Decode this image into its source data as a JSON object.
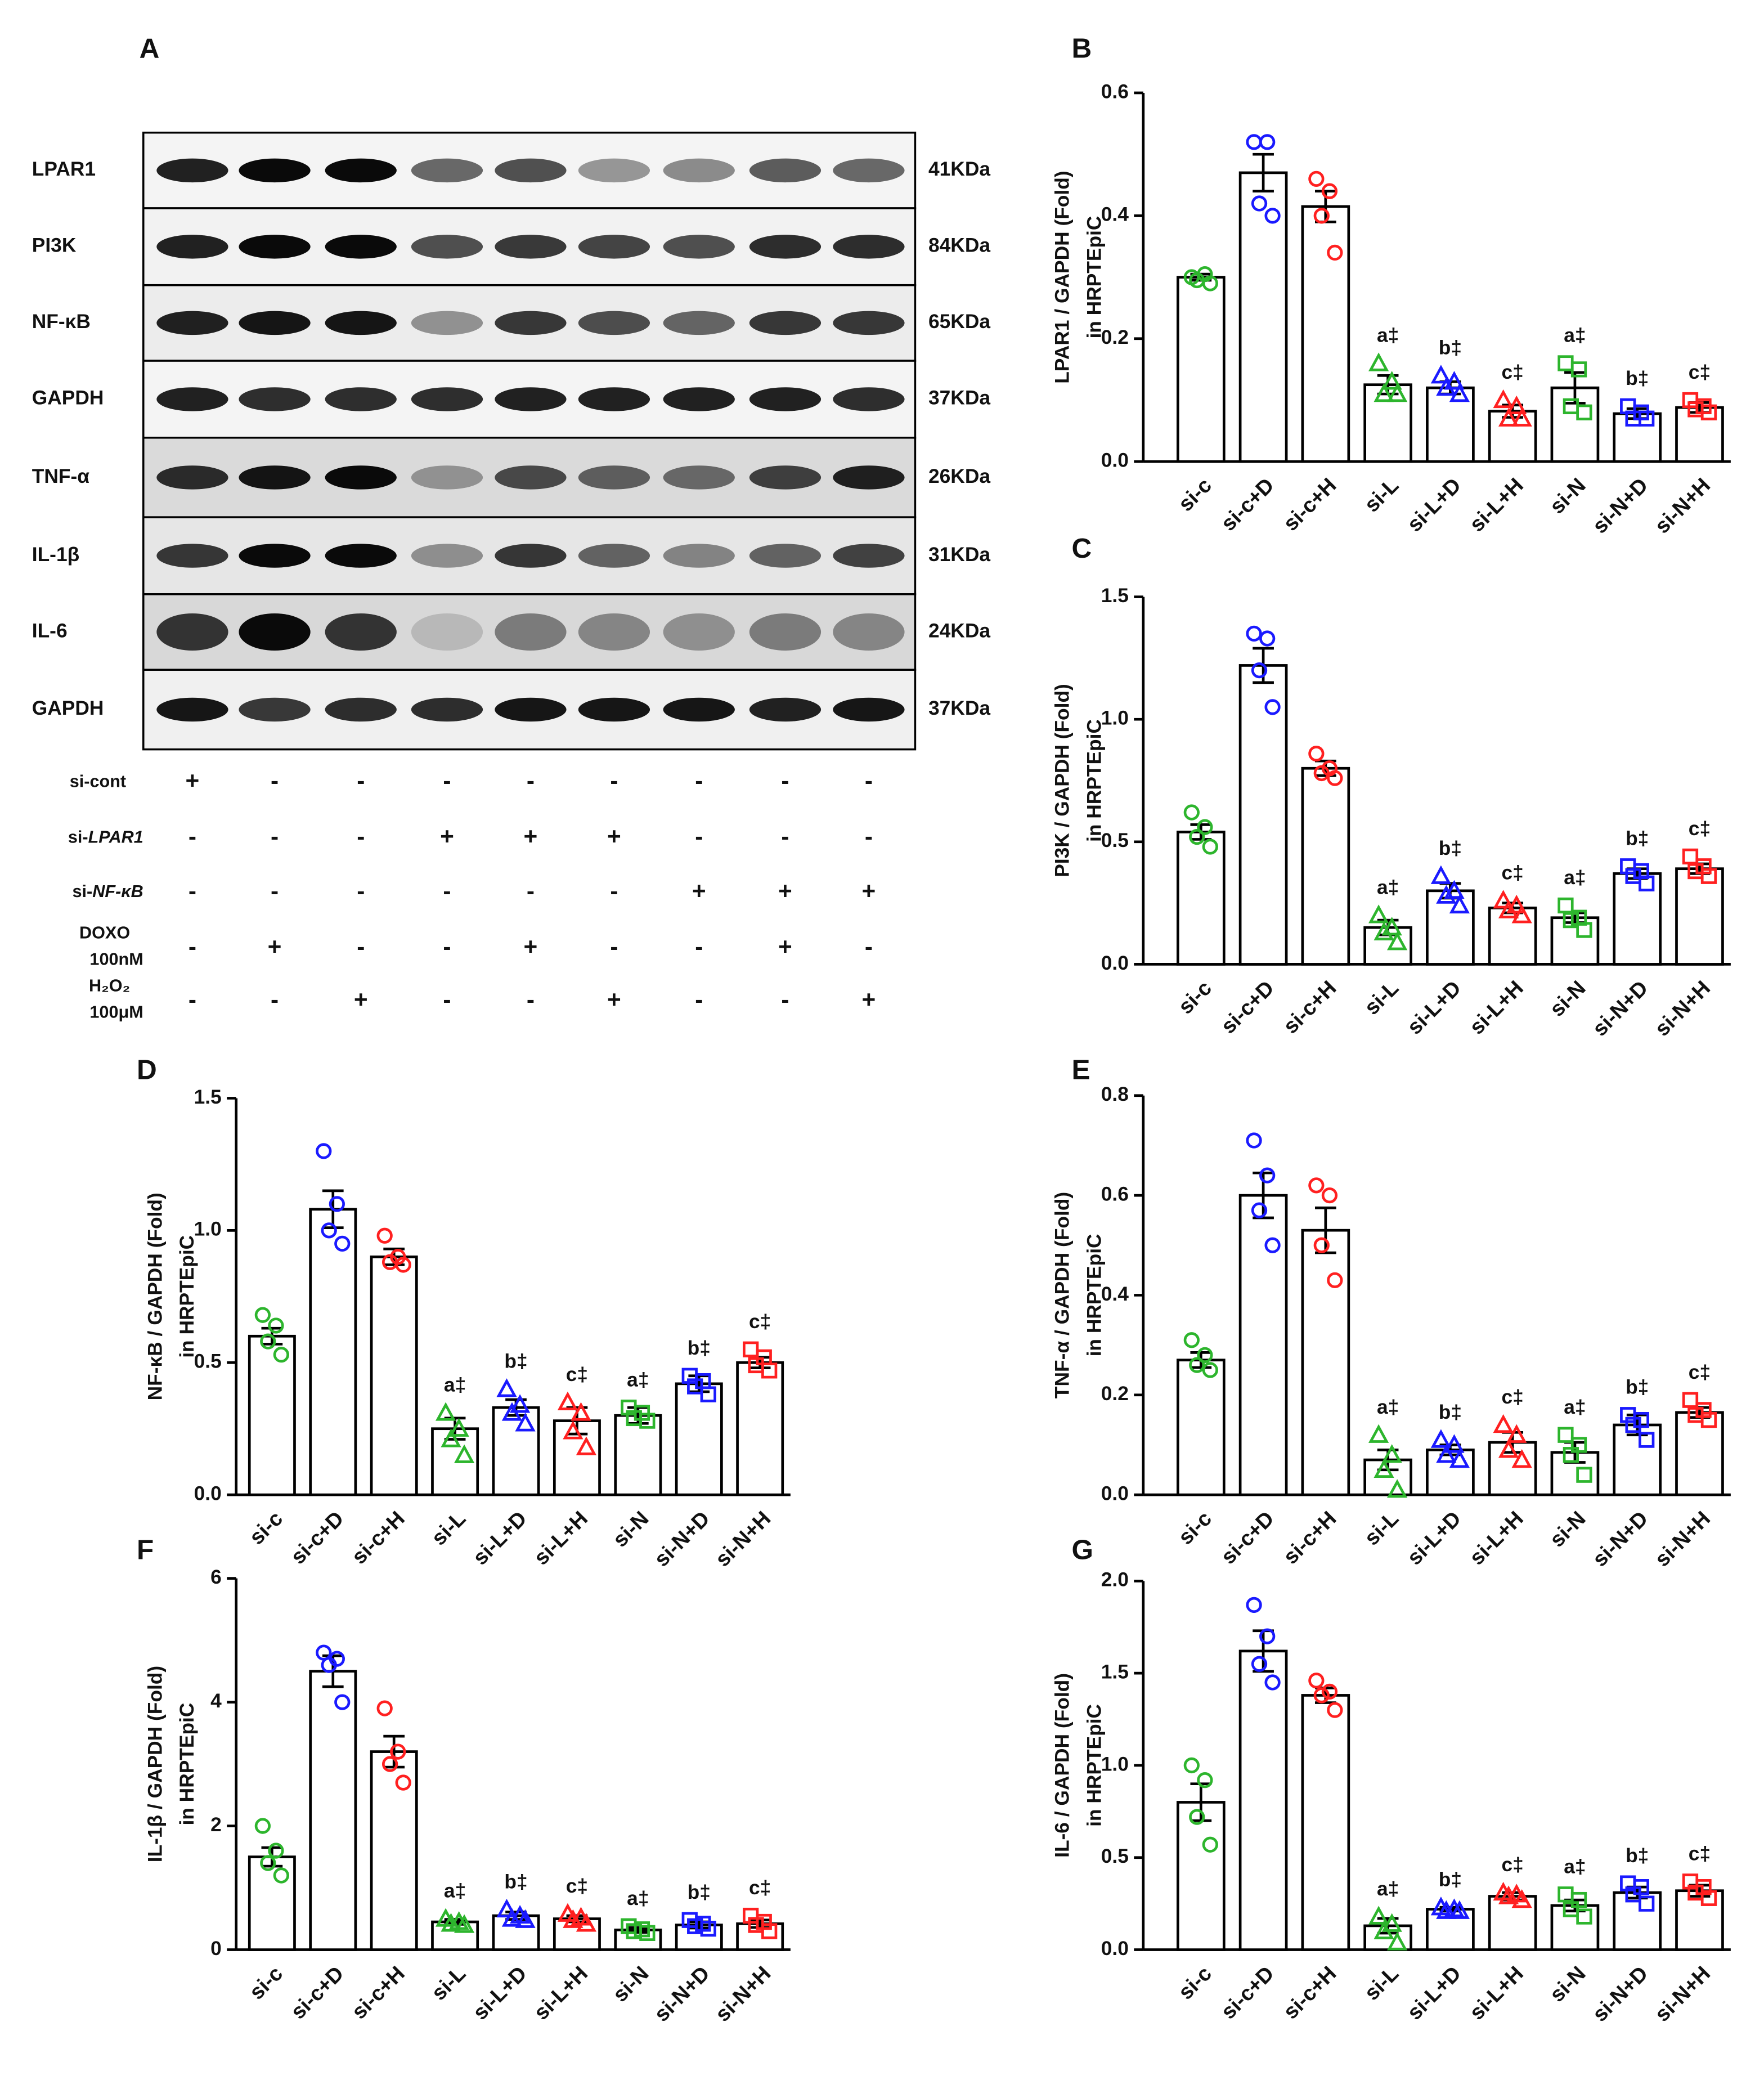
{
  "styles": {
    "colors": [
      "#2db52d",
      "#1a1aff",
      "#ff2020",
      "#2db52d",
      "#1a1aff",
      "#ff2020",
      "#2db52d",
      "#1a1aff",
      "#ff2020"
    ],
    "markers": [
      "circle",
      "circle",
      "circle",
      "triangle",
      "triangle",
      "triangle",
      "square",
      "square",
      "square"
    ]
  },
  "blot": {
    "panel": "A",
    "rows": [
      {
        "label": "LPAR1",
        "kda": "41KDa"
      },
      {
        "label": "PI3K",
        "kda": "84KDa"
      },
      {
        "label": "NF-κB",
        "kda": "65KDa"
      },
      {
        "label": "GAPDH",
        "kda": "37KDa"
      },
      {
        "label": "TNF-α",
        "kda": "26KDa"
      },
      {
        "label": "IL-1β",
        "kda": "31KDa"
      },
      {
        "label": "IL-6",
        "kda": "24KDa"
      },
      {
        "label": "GAPDH",
        "kda": "37KDa"
      }
    ],
    "treatments": [
      {
        "label": "si-cont",
        "signs": [
          "+",
          "-",
          "-",
          "-",
          "-",
          "-",
          "-",
          "-",
          "-"
        ]
      },
      {
        "label": "si-",
        "label_italic": "LPAR1",
        "signs": [
          "-",
          "-",
          "-",
          "+",
          "+",
          "+",
          "-",
          "-",
          "-"
        ]
      },
      {
        "label": "si-",
        "label_italic": "NF-κB",
        "signs": [
          "-",
          "-",
          "-",
          "-",
          "-",
          "-",
          "+",
          "+",
          "+"
        ]
      },
      {
        "label": "DOXO",
        "label2": "100nM",
        "signs": [
          "-",
          "+",
          "-",
          "-",
          "+",
          "-",
          "-",
          "+",
          "-"
        ]
      },
      {
        "label": "H₂O₂",
        "label2": "100μM",
        "signs": [
          "-",
          "-",
          "+",
          "-",
          "-",
          "+",
          "-",
          "-",
          "+"
        ]
      }
    ]
  },
  "chart_data": [
    {
      "type": "bar",
      "panel": "B",
      "ylabel": [
        "LPAR1 / GAPDH (Fold)",
        "in HRPTEpiC"
      ],
      "categories": [
        "si-c",
        "si-c+D",
        "si-c+H",
        "si-L",
        "si-L+D",
        "si-L+H",
        "si-N",
        "si-N+D",
        "si-N+H"
      ],
      "values": [
        0.3,
        0.47,
        0.415,
        0.125,
        0.12,
        0.082,
        0.12,
        0.078,
        0.088
      ],
      "errors": [
        0.005,
        0.03,
        0.025,
        0.015,
        0.01,
        0.01,
        0.025,
        0.008,
        0.008
      ],
      "points": [
        [
          0.3,
          0.305,
          0.295,
          0.29
        ],
        [
          0.52,
          0.52,
          0.42,
          0.4
        ],
        [
          0.46,
          0.44,
          0.4,
          0.34
        ],
        [
          0.16,
          0.13,
          0.11,
          0.11
        ],
        [
          0.14,
          0.13,
          0.12,
          0.11
        ],
        [
          0.1,
          0.09,
          0.07,
          0.07
        ],
        [
          0.16,
          0.15,
          0.09,
          0.08
        ],
        [
          0.09,
          0.08,
          0.07,
          0.07
        ],
        [
          0.1,
          0.09,
          0.085,
          0.08
        ]
      ],
      "annotations": [
        null,
        null,
        null,
        "a‡",
        "b‡",
        "c‡",
        "a‡",
        "b‡",
        "c‡"
      ],
      "ylim": [
        0,
        0.6
      ],
      "yticks": [
        {
          "value": 0,
          "label": "0.0"
        },
        0.2,
        0.4,
        0.6
      ]
    },
    {
      "type": "bar",
      "panel": "C",
      "ylabel": [
        "PI3K / GAPDH (Fold)",
        "in HRPTEpiC"
      ],
      "categories": [
        "si-c",
        "si-c+D",
        "si-c+H",
        "si-L",
        "si-L+D",
        "si-L+H",
        "si-N",
        "si-N+D",
        "si-N+H"
      ],
      "values": [
        0.54,
        1.22,
        0.8,
        0.15,
        0.3,
        0.23,
        0.19,
        0.37,
        0.39
      ],
      "errors": [
        0.03,
        0.07,
        0.03,
        0.03,
        0.03,
        0.02,
        0.02,
        0.02,
        0.02
      ],
      "points": [
        [
          0.62,
          0.56,
          0.52,
          0.48
        ],
        [
          1.35,
          1.33,
          1.2,
          1.05
        ],
        [
          0.86,
          0.8,
          0.78,
          0.76
        ],
        [
          0.2,
          0.15,
          0.13,
          0.09
        ],
        [
          0.36,
          0.3,
          0.28,
          0.24
        ],
        [
          0.26,
          0.24,
          0.22,
          0.2
        ],
        [
          0.24,
          0.19,
          0.18,
          0.14
        ],
        [
          0.4,
          0.38,
          0.36,
          0.33
        ],
        [
          0.44,
          0.4,
          0.38,
          0.36
        ]
      ],
      "annotations": [
        null,
        null,
        null,
        "a‡",
        "b‡",
        "c‡",
        "a‡",
        "b‡",
        "c‡"
      ],
      "ylim": [
        0,
        1.5
      ],
      "yticks": [
        {
          "value": 0,
          "label": "0.0"
        },
        0.5,
        {
          "value": 1,
          "label": "1.0"
        },
        1.5
      ]
    },
    {
      "type": "bar",
      "panel": "D",
      "ylabel": [
        "NF-κB / GAPDH (Fold)",
        "in HRPTEpiC"
      ],
      "categories": [
        "si-c",
        "si-c+D",
        "si-c+H",
        "si-L",
        "si-L+D",
        "si-L+H",
        "si-N",
        "si-N+D",
        "si-N+H"
      ],
      "values": [
        0.6,
        1.08,
        0.9,
        0.25,
        0.33,
        0.28,
        0.3,
        0.42,
        0.5
      ],
      "errors": [
        0.03,
        0.07,
        0.03,
        0.04,
        0.03,
        0.05,
        0.03,
        0.03,
        0.02
      ],
      "points": [
        [
          0.68,
          0.64,
          0.58,
          0.53
        ],
        [
          1.3,
          1.1,
          1.0,
          0.95
        ],
        [
          0.98,
          0.9,
          0.88,
          0.87
        ],
        [
          0.31,
          0.25,
          0.21,
          0.15
        ],
        [
          0.4,
          0.34,
          0.31,
          0.27
        ],
        [
          0.35,
          0.31,
          0.24,
          0.18
        ],
        [
          0.33,
          0.31,
          0.29,
          0.28
        ],
        [
          0.45,
          0.43,
          0.41,
          0.38
        ],
        [
          0.55,
          0.52,
          0.49,
          0.47
        ]
      ],
      "annotations": [
        null,
        null,
        null,
        "a‡",
        "b‡",
        "c‡",
        "a‡",
        "b‡",
        "c‡"
      ],
      "ylim": [
        0,
        1.5
      ],
      "yticks": [
        {
          "value": 0,
          "label": "0.0"
        },
        0.5,
        {
          "value": 1,
          "label": "1.0"
        },
        1.5
      ]
    },
    {
      "type": "bar",
      "panel": "E",
      "ylabel": [
        "TNF-α / GAPDH (Fold)",
        "in HRPTEpiC"
      ],
      "categories": [
        "si-c",
        "si-c+D",
        "si-c+H",
        "si-L",
        "si-L+D",
        "si-L+H",
        "si-N",
        "si-N+D",
        "si-N+H"
      ],
      "values": [
        0.27,
        0.6,
        0.53,
        0.07,
        0.09,
        0.105,
        0.085,
        0.14,
        0.165
      ],
      "errors": [
        0.015,
        0.045,
        0.045,
        0.02,
        0.01,
        0.02,
        0.02,
        0.02,
        0.01
      ],
      "points": [
        [
          0.31,
          0.28,
          0.26,
          0.25
        ],
        [
          0.71,
          0.64,
          0.57,
          0.5
        ],
        [
          0.62,
          0.6,
          0.5,
          0.43
        ],
        [
          0.12,
          0.08,
          0.05,
          0.01
        ],
        [
          0.11,
          0.1,
          0.08,
          0.07
        ],
        [
          0.14,
          0.12,
          0.09,
          0.07
        ],
        [
          0.12,
          0.1,
          0.08,
          0.04
        ],
        [
          0.16,
          0.15,
          0.14,
          0.11
        ],
        [
          0.19,
          0.17,
          0.16,
          0.15
        ]
      ],
      "annotations": [
        null,
        null,
        null,
        "a‡",
        "b‡",
        "c‡",
        "a‡",
        "b‡",
        "c‡"
      ],
      "ylim": [
        0,
        0.8
      ],
      "yticks": [
        {
          "value": 0,
          "label": "0.0"
        },
        0.2,
        0.4,
        0.6,
        0.8
      ]
    },
    {
      "type": "bar",
      "panel": "F",
      "ylabel": [
        "IL-1β / GAPDH (Fold)",
        "in HRPTEpiC"
      ],
      "categories": [
        "si-c",
        "si-c+D",
        "si-c+H",
        "si-L",
        "si-L+D",
        "si-L+H",
        "si-N",
        "si-N+D",
        "si-N+H"
      ],
      "values": [
        1.5,
        4.5,
        3.2,
        0.45,
        0.55,
        0.5,
        0.32,
        0.4,
        0.42
      ],
      "errors": [
        0.15,
        0.25,
        0.25,
        0.04,
        0.06,
        0.05,
        0.04,
        0.05,
        0.06
      ],
      "points": [
        [
          2.0,
          1.6,
          1.4,
          1.2
        ],
        [
          4.8,
          4.7,
          4.6,
          4.0
        ],
        [
          3.9,
          3.2,
          3.0,
          2.7
        ],
        [
          0.5,
          0.45,
          0.42,
          0.4
        ],
        [
          0.65,
          0.55,
          0.5,
          0.48
        ],
        [
          0.58,
          0.52,
          0.48,
          0.42
        ],
        [
          0.38,
          0.33,
          0.3,
          0.27
        ],
        [
          0.48,
          0.42,
          0.38,
          0.34
        ],
        [
          0.55,
          0.45,
          0.4,
          0.3
        ]
      ],
      "annotations": [
        null,
        null,
        null,
        "a‡",
        "b‡",
        "c‡",
        "a‡",
        "b‡",
        "c‡"
      ],
      "ylim": [
        0,
        6
      ],
      "yticks": [
        0,
        2,
        4,
        6
      ]
    },
    {
      "type": "bar",
      "panel": "G",
      "ylabel": [
        "IL-6 / GAPDH (Fold)",
        "in HRPTEpiC"
      ],
      "categories": [
        "si-c",
        "si-c+D",
        "si-c+H",
        "si-L",
        "si-L+D",
        "si-L+H",
        "si-N",
        "si-N+D",
        "si-N+H"
      ],
      "values": [
        0.8,
        1.62,
        1.38,
        0.13,
        0.22,
        0.29,
        0.24,
        0.31,
        0.32
      ],
      "errors": [
        0.1,
        0.11,
        0.04,
        0.04,
        0.01,
        0.02,
        0.03,
        0.03,
        0.03
      ],
      "points": [
        [
          1.0,
          0.92,
          0.72,
          0.57
        ],
        [
          1.87,
          1.7,
          1.55,
          1.45
        ],
        [
          1.46,
          1.4,
          1.38,
          1.3
        ],
        [
          0.18,
          0.14,
          0.1,
          0.04
        ],
        [
          0.23,
          0.22,
          0.21,
          0.21
        ],
        [
          0.31,
          0.3,
          0.29,
          0.27
        ],
        [
          0.3,
          0.27,
          0.22,
          0.18
        ],
        [
          0.36,
          0.34,
          0.3,
          0.25
        ],
        [
          0.37,
          0.34,
          0.31,
          0.28
        ]
      ],
      "annotations": [
        null,
        null,
        null,
        "a‡",
        "b‡",
        "c‡",
        "a‡",
        "b‡",
        "c‡"
      ],
      "ylim": [
        0,
        2
      ],
      "yticks": [
        {
          "value": 0,
          "label": "0.0"
        },
        0.5,
        {
          "value": 1,
          "label": "1.0"
        },
        1.5,
        {
          "value": 2,
          "label": "2.0"
        }
      ]
    }
  ]
}
